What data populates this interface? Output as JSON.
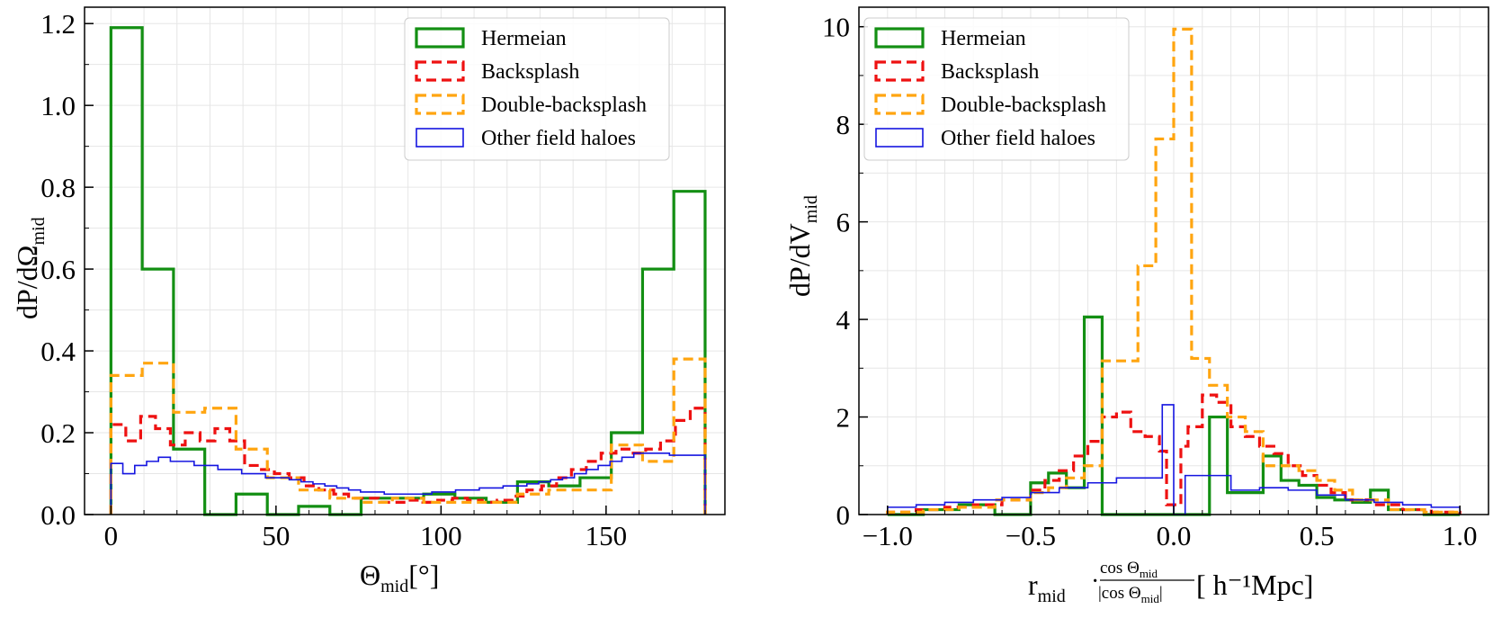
{
  "chart_data": [
    {
      "type": "histogram",
      "id": "left",
      "xlabel": {
        "main": "Θ",
        "sub": "mid",
        "unit": "[°]"
      },
      "ylabel": {
        "main": "dP/dΩ",
        "sub": "mid"
      },
      "xlim": [
        -8,
        186
      ],
      "ylim": [
        0,
        1.24
      ],
      "xticks": [
        0,
        50,
        100,
        150
      ],
      "xtick_labels": [
        "0",
        "50",
        "100",
        "150"
      ],
      "yticks": [
        0,
        0.2,
        0.4,
        0.6,
        0.8,
        1.0,
        1.2
      ],
      "ytick_labels": [
        "0.0",
        "0.2",
        "0.4",
        "0.6",
        "0.8",
        "1.0",
        "1.2"
      ],
      "grid": true,
      "legend_position": "top-right",
      "series": [
        {
          "name": "Hermeian",
          "color": "#138f13",
          "style": "solid",
          "edges": [
            0,
            9.47,
            18.95,
            28.42,
            37.89,
            47.37,
            56.84,
            66.32,
            75.79,
            85.26,
            94.74,
            104.21,
            113.68,
            123.16,
            132.63,
            142.11,
            151.58,
            161.05,
            170.53,
            180
          ],
          "values": [
            1.19,
            0.6,
            0.16,
            0.0,
            0.05,
            0.0,
            0.02,
            0.0,
            0.04,
            0.04,
            0.05,
            0.04,
            0.03,
            0.08,
            0.07,
            0.09,
            0.2,
            0.6,
            0.79
          ]
        },
        {
          "name": "Backsplash",
          "color": "#ee1111",
          "style": "dashed",
          "edges": [
            0,
            4.5,
            9,
            13.5,
            18,
            22.5,
            27,
            31.5,
            36,
            40.5,
            45,
            49.5,
            54,
            58.5,
            63,
            67.5,
            72,
            76.5,
            81,
            85.5,
            90,
            94.5,
            99,
            103.5,
            108,
            112.5,
            117,
            121.5,
            126,
            130.5,
            135,
            139.5,
            144,
            148.5,
            153,
            157.5,
            162,
            166.5,
            171,
            175.5,
            180
          ],
          "values": [
            0.22,
            0.18,
            0.24,
            0.21,
            0.17,
            0.2,
            0.18,
            0.21,
            0.18,
            0.12,
            0.11,
            0.1,
            0.09,
            0.07,
            0.06,
            0.05,
            0.04,
            0.04,
            0.03,
            0.03,
            0.035,
            0.03,
            0.035,
            0.04,
            0.035,
            0.03,
            0.035,
            0.045,
            0.06,
            0.07,
            0.09,
            0.11,
            0.13,
            0.15,
            0.16,
            0.15,
            0.16,
            0.18,
            0.23,
            0.26
          ]
        },
        {
          "name": "Double-backsplash",
          "color": "#ffa510",
          "style": "dashed",
          "edges": [
            0,
            9.47,
            18.95,
            28.42,
            37.89,
            47.37,
            56.84,
            66.32,
            75.79,
            85.26,
            94.74,
            104.21,
            113.68,
            123.16,
            132.63,
            142.11,
            151.58,
            161.05,
            170.53,
            180
          ],
          "values": [
            0.34,
            0.37,
            0.25,
            0.26,
            0.16,
            0.09,
            0.06,
            0.04,
            0.03,
            0.04,
            0.03,
            0.03,
            0.03,
            0.05,
            0.06,
            0.06,
            0.17,
            0.13,
            0.38
          ]
        },
        {
          "name": "Other field haloes",
          "color": "#1515e0",
          "style": "thin",
          "edges": [
            0,
            3.6,
            7.2,
            10.8,
            14.4,
            18,
            21.6,
            25.2,
            28.8,
            32.4,
            36,
            39.6,
            43.2,
            46.8,
            50.4,
            54,
            57.6,
            61.2,
            64.8,
            68.4,
            72,
            75.6,
            79.2,
            82.8,
            86.4,
            90,
            93.6,
            97.2,
            100.8,
            104.4,
            108,
            111.6,
            115.2,
            118.8,
            122.4,
            126,
            129.6,
            133.2,
            136.8,
            140.4,
            144,
            147.6,
            151.2,
            154.8,
            158.4,
            162,
            165.6,
            169.2,
            172.8,
            176.4,
            180
          ],
          "values": [
            0.125,
            0.1,
            0.12,
            0.13,
            0.14,
            0.13,
            0.13,
            0.12,
            0.12,
            0.11,
            0.11,
            0.1,
            0.1,
            0.09,
            0.09,
            0.085,
            0.08,
            0.075,
            0.07,
            0.065,
            0.06,
            0.055,
            0.055,
            0.05,
            0.05,
            0.05,
            0.05,
            0.055,
            0.055,
            0.06,
            0.06,
            0.065,
            0.065,
            0.07,
            0.07,
            0.075,
            0.08,
            0.085,
            0.09,
            0.1,
            0.11,
            0.12,
            0.13,
            0.14,
            0.15,
            0.15,
            0.15,
            0.145,
            0.145,
            0.145
          ]
        }
      ]
    },
    {
      "type": "histogram",
      "id": "right",
      "xlabel": {
        "main": "r",
        "sub": "mid",
        "frac_num": "cos Θ",
        "frac_num_sub": "mid",
        "frac_den": "|cos Θ",
        "frac_den_sub": "mid",
        "frac_den_end": "|",
        "unit": "[ h⁻¹Mpc]"
      },
      "ylabel": {
        "main": "dP/dV",
        "sub": "mid"
      },
      "xlim": [
        -1.1,
        1.1
      ],
      "ylim": [
        0,
        10.4
      ],
      "xticks": [
        -1.0,
        -0.5,
        0.0,
        0.5,
        1.0
      ],
      "xtick_labels": [
        "−1.0",
        "−0.5",
        "0.0",
        "0.5",
        "1.0"
      ],
      "yticks": [
        0,
        2,
        4,
        6,
        8,
        10
      ],
      "ytick_labels": [
        "0",
        "2",
        "4",
        "6",
        "8",
        "10"
      ],
      "grid": true,
      "legend_position": "top-left",
      "series": [
        {
          "name": "Hermeian",
          "color": "#138f13",
          "style": "solid",
          "edges": [
            -1.0,
            -0.875,
            -0.75,
            -0.625,
            -0.5,
            -0.4375,
            -0.375,
            -0.3125,
            -0.25,
            -0.125,
            0.0,
            0.125,
            0.1875,
            0.25,
            0.3125,
            0.375,
            0.4375,
            0.5,
            0.5625,
            0.625,
            0.6875,
            0.75,
            0.875,
            1.0
          ],
          "values": [
            0.0,
            0.1,
            0.2,
            0.0,
            0.65,
            0.85,
            0.55,
            4.05,
            0.0,
            0.0,
            0.0,
            2.0,
            0.45,
            0.45,
            1.2,
            0.7,
            0.6,
            0.35,
            0.3,
            0.25,
            0.5,
            0.1,
            0.0
          ]
        },
        {
          "name": "Backsplash",
          "color": "#ee1111",
          "style": "dashed",
          "edges": [
            -1.0,
            -0.9,
            -0.8,
            -0.7,
            -0.6,
            -0.5,
            -0.45,
            -0.4,
            -0.35,
            -0.3,
            -0.25,
            -0.2,
            -0.15,
            -0.1,
            -0.05,
            -0.025,
            0.0,
            0.025,
            0.05,
            0.1,
            0.15,
            0.2,
            0.25,
            0.3,
            0.35,
            0.4,
            0.45,
            0.5,
            0.55,
            0.6,
            0.7,
            0.8,
            0.9,
            1.0
          ],
          "values": [
            0.05,
            0.1,
            0.15,
            0.2,
            0.3,
            0.5,
            0.7,
            0.9,
            1.2,
            1.5,
            2.0,
            2.1,
            1.7,
            1.6,
            1.3,
            0.2,
            0.2,
            1.4,
            1.8,
            2.45,
            2.3,
            1.8,
            1.6,
            1.4,
            1.25,
            1.0,
            0.8,
            0.6,
            0.45,
            0.3,
            0.2,
            0.1,
            0.05
          ]
        },
        {
          "name": "Double-backsplash",
          "color": "#ffa510",
          "style": "dashed",
          "edges": [
            -1.0,
            -0.875,
            -0.75,
            -0.625,
            -0.5,
            -0.4375,
            -0.375,
            -0.3125,
            -0.25,
            -0.1875,
            -0.125,
            -0.0625,
            0.0,
            0.0625,
            0.125,
            0.1875,
            0.25,
            0.3125,
            0.375,
            0.4375,
            0.5,
            0.5625,
            0.625,
            0.75,
            0.875,
            1.0
          ],
          "values": [
            0.05,
            0.1,
            0.15,
            0.3,
            0.45,
            0.55,
            0.75,
            1.0,
            3.15,
            3.15,
            5.1,
            7.7,
            9.95,
            3.2,
            2.65,
            2.0,
            1.7,
            1.0,
            1.0,
            0.9,
            0.7,
            0.5,
            0.3,
            0.1,
            0.05
          ]
        },
        {
          "name": "Other field haloes",
          "color": "#1515e0",
          "style": "thin",
          "edges": [
            -1.0,
            -0.9,
            -0.8,
            -0.7,
            -0.6,
            -0.5,
            -0.4,
            -0.3,
            -0.2,
            -0.1,
            -0.04,
            0.0,
            0.04,
            0.1,
            0.2,
            0.3,
            0.4,
            0.5,
            0.6,
            0.7,
            0.8,
            0.9,
            1.0
          ],
          "values": [
            0.15,
            0.2,
            0.25,
            0.3,
            0.35,
            0.45,
            0.55,
            0.65,
            0.75,
            0.75,
            2.25,
            0.0,
            0.8,
            0.8,
            0.5,
            0.55,
            0.5,
            0.4,
            0.3,
            0.25,
            0.2,
            0.15
          ]
        }
      ]
    }
  ]
}
